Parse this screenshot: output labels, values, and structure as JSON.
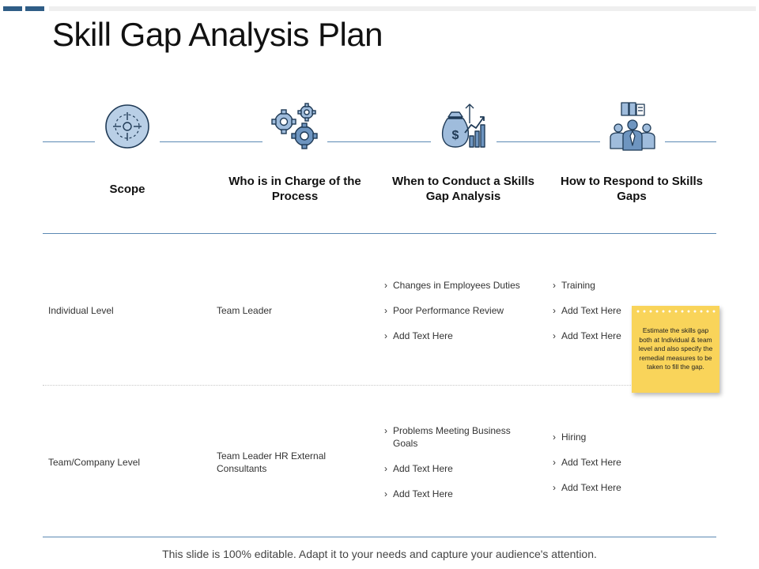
{
  "slide": {
    "title": "Skill Gap Analysis Plan",
    "accent_color": "#2f5d86",
    "line_color": "#5c89b4"
  },
  "columns": [
    {
      "heading": "Scope",
      "icon": "target-icon"
    },
    {
      "heading": "Who is in Charge of the Process",
      "icon": "gears-icon"
    },
    {
      "heading": "When to Conduct a Skills Gap Analysis",
      "icon": "money-growth-icon"
    },
    {
      "heading": "How to Respond to Skills Gaps",
      "icon": "team-icon"
    }
  ],
  "rows": [
    {
      "scope": "Individual  Level",
      "in_charge": "Team Leader",
      "when": [
        "Changes  in Employees Duties",
        "Poor Performance Review",
        "Add Text Here"
      ],
      "respond": [
        "Training",
        "Add Text Here",
        "Add Text Here"
      ]
    },
    {
      "scope": "Team/Company  Level",
      "in_charge": "Team Leader HR External Consultants",
      "when": [
        "Problems  Meeting Business Goals",
        "Add Text Here",
        "Add Text Here"
      ],
      "respond": [
        "Hiring",
        "Add Text Here",
        "Add Text Here"
      ]
    }
  ],
  "sticky_note": {
    "text": "Estimate the skills gap both at Individual & team level and also specify the remedial measures to be taken to fill the gap.",
    "color": "#f9d45a"
  },
  "footer": "This slide is 100% editable. Adapt it to your needs and capture your audience's attention."
}
